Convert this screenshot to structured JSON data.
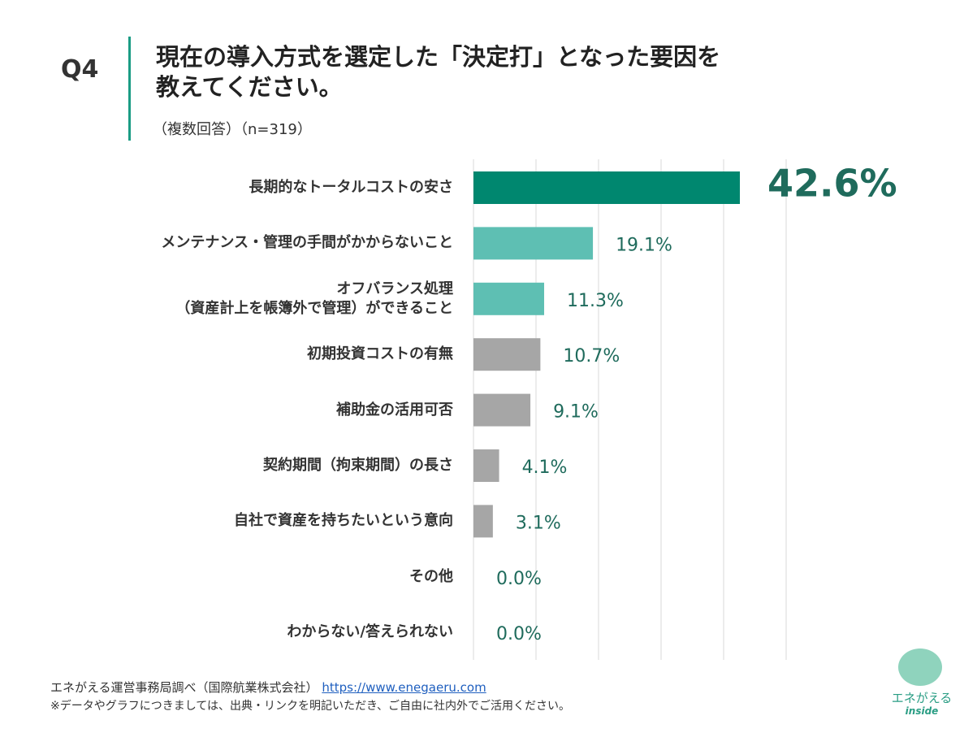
{
  "header": {
    "question": "Q4",
    "title": "現在の導入方式を選定した「決定打」となった要因を\n教えてください。",
    "subtitle": "（複数回答）（n=319）"
  },
  "chart_data": {
    "type": "bar",
    "orientation": "horizontal",
    "categories": [
      "長期的なトータルコストの安さ",
      "メンテナンス・管理の手間がかからないこと",
      "オフバランス処理\n（資産計上を帳簿外で管理）ができること",
      "初期投資コストの有無",
      "補助金の活用可否",
      "契約期間（拘束期間）の長さ",
      "自社で資産を持ちたいという意向",
      "その他",
      "わからない/答えられない"
    ],
    "values": [
      42.6,
      19.1,
      11.3,
      10.7,
      9.1,
      4.1,
      3.1,
      0.0,
      0.0
    ],
    "value_labels": [
      "42.6%",
      "19.1%",
      "11.3%",
      "10.7%",
      "9.1%",
      "4.1%",
      "3.1%",
      "0.0%",
      "0.0%"
    ],
    "colors": [
      "#00876f",
      "#5ebfb3",
      "#5ebfb3",
      "#a6a6a6",
      "#a6a6a6",
      "#a6a6a6",
      "#a6a6a6",
      "#a6a6a6",
      "#a6a6a6"
    ],
    "label_color": "#1f6b5c",
    "xlim": [
      0,
      50
    ],
    "xticks": [
      0,
      10,
      20,
      30,
      40,
      50
    ],
    "grid": true
  },
  "footer": {
    "source": "エネがえる運営事務局調べ（国際航業株式会社）",
    "link": "https://www.enegaeru.com",
    "note": "※データやグラフにつきましては、出典・リンクを明記いただき、ご自由に社内外でご活用ください。"
  },
  "logo": {
    "line1": "エネがえる",
    "line2": "inside"
  }
}
